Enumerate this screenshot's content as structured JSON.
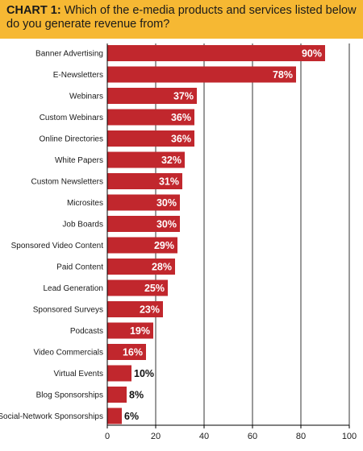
{
  "header": {
    "lead": "CHART 1:",
    "question": " Which of the e-media products and services listed below do you generate revenue from?"
  },
  "colors": {
    "banner": "#f6b833",
    "bar": "#c1272d",
    "axis": "#000000"
  },
  "chart_data": {
    "type": "bar",
    "orientation": "horizontal",
    "title": "CHART 1: Which of the e-media products and services listed below do you generate revenue from?",
    "categories": [
      "Banner Advertising",
      "E-Newsletters",
      "Webinars",
      "Custom Webinars",
      "Online Directories",
      "White Papers",
      "Custom Newsletters",
      "Microsites",
      "Job Boards",
      "Sponsored Video Content",
      "Paid Content",
      "Lead Generation",
      "Sponsored Surveys",
      "Podcasts",
      "Video Commercials",
      "Virtual Events",
      "Blog Sponsorships",
      "Social-Network Sponsorships"
    ],
    "values": [
      90,
      78,
      37,
      36,
      36,
      32,
      31,
      30,
      30,
      29,
      28,
      25,
      23,
      19,
      16,
      10,
      8,
      6
    ],
    "value_labels": [
      "90%",
      "78%",
      "37%",
      "36%",
      "36%",
      "32%",
      "31%",
      "30%",
      "30%",
      "29%",
      "28%",
      "25%",
      "23%",
      "19%",
      "16%",
      "10%",
      "8%",
      "6%"
    ],
    "xlim": [
      0,
      100
    ],
    "xticks": [
      0,
      20,
      40,
      60,
      80,
      100
    ],
    "xtick_labels": [
      "0",
      "20",
      "40",
      "60",
      "80",
      "100"
    ],
    "grid": "vertical lines at major ticks",
    "legend": "none"
  }
}
